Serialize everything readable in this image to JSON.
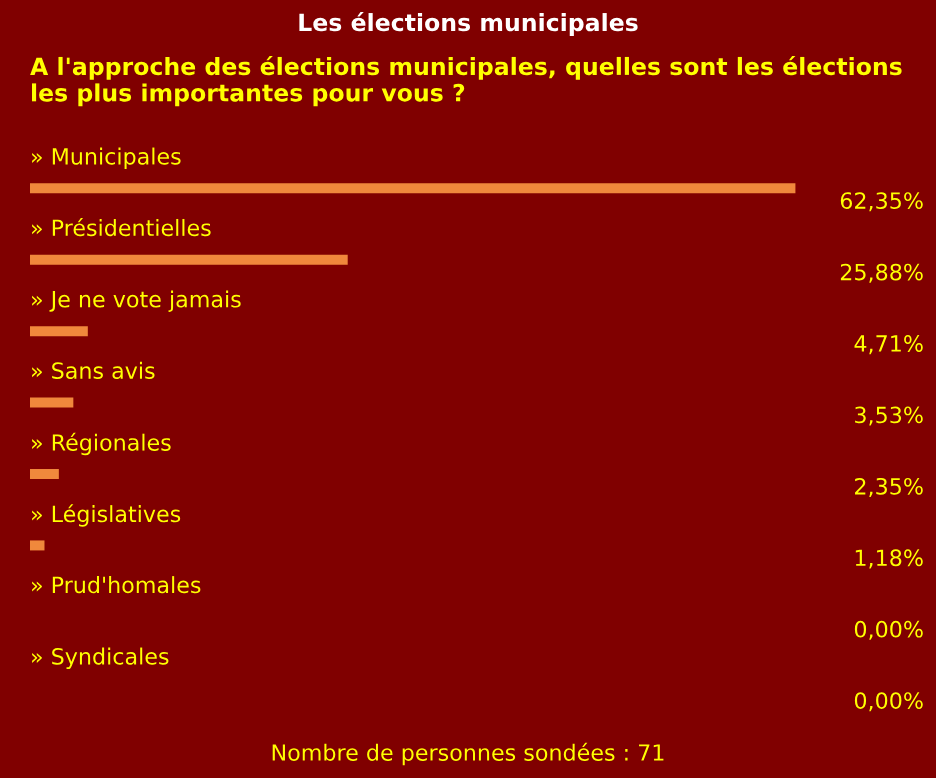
{
  "chart_data": {
    "type": "bar",
    "orientation": "horizontal",
    "title": "Les élections municipales",
    "subtitle": "A l'approche des élections municipales, quelles sont les élections les plus importantes pour vous ?",
    "categories": [
      "» Municipales",
      "» Présidentielles",
      "» Je ne vote jamais",
      "» Sans avis",
      "» Régionales",
      "» Législatives",
      "» Prud'homales",
      "» Syndicales"
    ],
    "values": [
      62.35,
      25.88,
      4.71,
      3.53,
      2.35,
      1.18,
      0.0,
      0.0
    ],
    "value_labels": [
      "62,35%",
      "25,88%",
      "4,71%",
      "3,53%",
      "2,35%",
      "1,18%",
      "0,00%",
      "0,00%"
    ],
    "color": "#f0883c",
    "annotations": [
      "Nombre de personnes sondées : 71"
    ]
  }
}
